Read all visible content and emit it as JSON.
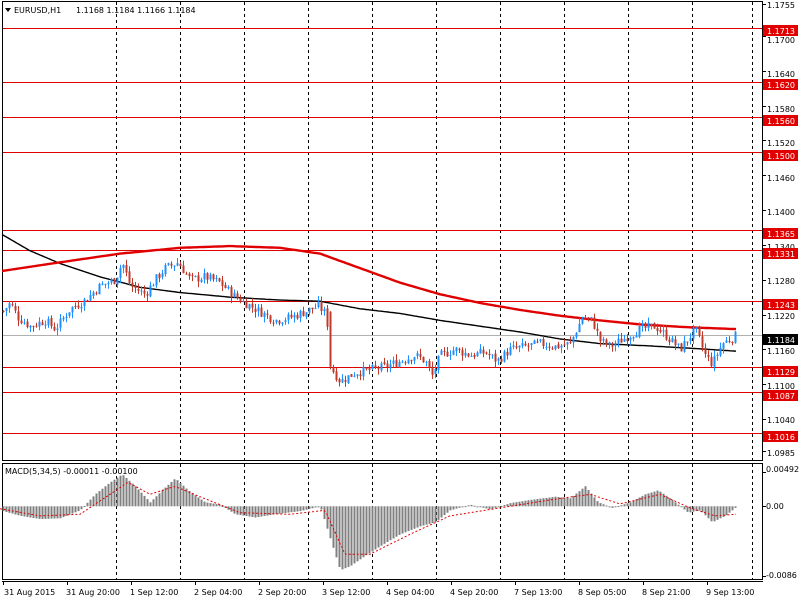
{
  "header": {
    "symbol": "EURUSD,H1",
    "ohlc": "1.1168 1.1184 1.1166 1.1184"
  },
  "macd": {
    "label": "MACD(5,34,5) -0.00011 -0.00100"
  },
  "colors": {
    "bull": "#1e90ff",
    "bear": "#c0392b",
    "level_line": "#e00000",
    "ma_slow": "#e00000",
    "ma_fast": "#000000",
    "macd_hist": "#808080",
    "macd_signal": "#e00000",
    "grid": "#000000"
  },
  "chart_data": [
    {
      "type": "candlestick",
      "symbol": "EURUSD",
      "timeframe": "H1",
      "x_ticks": [
        "31 Aug 2015",
        "31 Aug 20:00",
        "1 Sep 12:00",
        "2 Sep 04:00",
        "2 Sep 20:00",
        "3 Sep 12:00",
        "4 Sep 04:00",
        "4 Sep 20:00",
        "7 Sep 13:00",
        "8 Sep 05:00",
        "8 Sep 21:00",
        "9 Sep 13:00"
      ],
      "y_ticks": [
        "1.1755",
        "1.1700",
        "1.1640",
        "1.1580",
        "1.1520",
        "1.1460",
        "1.1400",
        "1.1340",
        "1.1280",
        "1.1220",
        "1.1160",
        "1.1100",
        "1.1040",
        "1.0985"
      ],
      "ylim": [
        1.0985,
        1.1755
      ],
      "grid": true,
      "level_lines": [
        "1.1713",
        "1.1620",
        "1.1560",
        "1.1500",
        "1.1365",
        "1.1331",
        "1.1243",
        "1.1129",
        "1.1087",
        "1.1016"
      ],
      "current_price": "1.1184",
      "anchors": [
        {
          "x": 0,
          "p": 1.122
        },
        {
          "x": 10,
          "p": 1.124
        },
        {
          "x": 18,
          "p": 1.1215
        },
        {
          "x": 30,
          "p": 1.12
        },
        {
          "x": 45,
          "p": 1.121
        },
        {
          "x": 55,
          "p": 1.1195
        },
        {
          "x": 70,
          "p": 1.123
        },
        {
          "x": 85,
          "p": 1.1245
        },
        {
          "x": 100,
          "p": 1.127
        },
        {
          "x": 115,
          "p": 1.128
        },
        {
          "x": 122,
          "p": 1.131
        },
        {
          "x": 130,
          "p": 1.127
        },
        {
          "x": 145,
          "p": 1.1255
        },
        {
          "x": 155,
          "p": 1.128
        },
        {
          "x": 165,
          "p": 1.13
        },
        {
          "x": 178,
          "p": 1.131
        },
        {
          "x": 190,
          "p": 1.128
        },
        {
          "x": 205,
          "p": 1.1285
        },
        {
          "x": 220,
          "p": 1.1275
        },
        {
          "x": 232,
          "p": 1.1255
        },
        {
          "x": 245,
          "p": 1.124
        },
        {
          "x": 260,
          "p": 1.1225
        },
        {
          "x": 275,
          "p": 1.121
        },
        {
          "x": 290,
          "p": 1.1215
        },
        {
          "x": 305,
          "p": 1.1225
        },
        {
          "x": 318,
          "p": 1.1235
        },
        {
          "x": 326,
          "p": 1.122
        },
        {
          "x": 332,
          "p": 1.1125
        },
        {
          "x": 340,
          "p": 1.1105
        },
        {
          "x": 355,
          "p": 1.112
        },
        {
          "x": 370,
          "p": 1.1125
        },
        {
          "x": 385,
          "p": 1.113
        },
        {
          "x": 400,
          "p": 1.114
        },
        {
          "x": 415,
          "p": 1.115
        },
        {
          "x": 425,
          "p": 1.114
        },
        {
          "x": 432,
          "p": 1.1115
        },
        {
          "x": 440,
          "p": 1.115
        },
        {
          "x": 455,
          "p": 1.116
        },
        {
          "x": 470,
          "p": 1.115
        },
        {
          "x": 485,
          "p": 1.1155
        },
        {
          "x": 497,
          "p": 1.114
        },
        {
          "x": 510,
          "p": 1.116
        },
        {
          "x": 525,
          "p": 1.1165
        },
        {
          "x": 540,
          "p": 1.117
        },
        {
          "x": 555,
          "p": 1.1165
        },
        {
          "x": 570,
          "p": 1.117
        },
        {
          "x": 582,
          "p": 1.1215
        },
        {
          "x": 592,
          "p": 1.121
        },
        {
          "x": 600,
          "p": 1.1175
        },
        {
          "x": 610,
          "p": 1.1165
        },
        {
          "x": 625,
          "p": 1.118
        },
        {
          "x": 640,
          "p": 1.1195
        },
        {
          "x": 655,
          "p": 1.12
        },
        {
          "x": 665,
          "p": 1.1185
        },
        {
          "x": 680,
          "p": 1.116
        },
        {
          "x": 695,
          "p": 1.1195
        },
        {
          "x": 705,
          "p": 1.115
        },
        {
          "x": 712,
          "p": 1.1135
        },
        {
          "x": 722,
          "p": 1.117
        },
        {
          "x": 736,
          "p": 1.1184
        }
      ],
      "ma_slow": [
        {
          "x": 2,
          "p": 1.1295
        },
        {
          "x": 60,
          "p": 1.131
        },
        {
          "x": 120,
          "p": 1.1325
        },
        {
          "x": 180,
          "p": 1.1335
        },
        {
          "x": 230,
          "p": 1.1338
        },
        {
          "x": 280,
          "p": 1.1335
        },
        {
          "x": 320,
          "p": 1.1325
        },
        {
          "x": 360,
          "p": 1.13
        },
        {
          "x": 400,
          "p": 1.1275
        },
        {
          "x": 440,
          "p": 1.1255
        },
        {
          "x": 480,
          "p": 1.124
        },
        {
          "x": 520,
          "p": 1.1228
        },
        {
          "x": 560,
          "p": 1.1218
        },
        {
          "x": 600,
          "p": 1.121
        },
        {
          "x": 640,
          "p": 1.1203
        },
        {
          "x": 690,
          "p": 1.1198
        },
        {
          "x": 736,
          "p": 1.1195
        }
      ],
      "ma_fast": [
        {
          "x": 2,
          "p": 1.1358
        },
        {
          "x": 30,
          "p": 1.133
        },
        {
          "x": 60,
          "p": 1.1308
        },
        {
          "x": 100,
          "p": 1.1285
        },
        {
          "x": 140,
          "p": 1.1267
        },
        {
          "x": 180,
          "p": 1.1258
        },
        {
          "x": 230,
          "p": 1.125
        },
        {
          "x": 280,
          "p": 1.1245
        },
        {
          "x": 320,
          "p": 1.1243
        },
        {
          "x": 360,
          "p": 1.123
        },
        {
          "x": 400,
          "p": 1.1222
        },
        {
          "x": 440,
          "p": 1.121
        },
        {
          "x": 480,
          "p": 1.12
        },
        {
          "x": 520,
          "p": 1.119
        },
        {
          "x": 560,
          "p": 1.1178
        },
        {
          "x": 600,
          "p": 1.117
        },
        {
          "x": 650,
          "p": 1.1166
        },
        {
          "x": 700,
          "p": 1.1161
        },
        {
          "x": 736,
          "p": 1.1157
        }
      ]
    },
    {
      "type": "histogram",
      "indicator": "MACD(5,34,5)",
      "y_ticks": [
        "0.00492",
        "0.00",
        "-0.0086"
      ],
      "ylim": [
        -0.0086,
        0.00492
      ],
      "hist_anchors": [
        {
          "x": 0,
          "v": -0.0005
        },
        {
          "x": 20,
          "v": -0.0012
        },
        {
          "x": 40,
          "v": -0.0016
        },
        {
          "x": 60,
          "v": -0.0015
        },
        {
          "x": 80,
          "v": -0.0005
        },
        {
          "x": 95,
          "v": 0.0015
        },
        {
          "x": 110,
          "v": 0.003
        },
        {
          "x": 122,
          "v": 0.004
        },
        {
          "x": 135,
          "v": 0.0025
        },
        {
          "x": 150,
          "v": 0.0005
        },
        {
          "x": 162,
          "v": 0.002
        },
        {
          "x": 175,
          "v": 0.0035
        },
        {
          "x": 188,
          "v": 0.002
        },
        {
          "x": 205,
          "v": 0.0005
        },
        {
          "x": 220,
          "v": 0.0002
        },
        {
          "x": 235,
          "v": -0.001
        },
        {
          "x": 255,
          "v": -0.0014
        },
        {
          "x": 275,
          "v": -0.001
        },
        {
          "x": 300,
          "v": -0.0006
        },
        {
          "x": 320,
          "v": 0.0
        },
        {
          "x": 330,
          "v": -0.004
        },
        {
          "x": 340,
          "v": -0.008
        },
        {
          "x": 350,
          "v": -0.0075
        },
        {
          "x": 365,
          "v": -0.0062
        },
        {
          "x": 380,
          "v": -0.005
        },
        {
          "x": 400,
          "v": -0.0035
        },
        {
          "x": 420,
          "v": -0.0025
        },
        {
          "x": 435,
          "v": -0.002
        },
        {
          "x": 450,
          "v": -0.0005
        },
        {
          "x": 470,
          "v": 0.0002
        },
        {
          "x": 490,
          "v": -0.0004
        },
        {
          "x": 510,
          "v": 0.0004
        },
        {
          "x": 530,
          "v": 0.0008
        },
        {
          "x": 555,
          "v": 0.0012
        },
        {
          "x": 570,
          "v": 0.001
        },
        {
          "x": 585,
          "v": 0.0025
        },
        {
          "x": 598,
          "v": 0.0005
        },
        {
          "x": 612,
          "v": -0.0002
        },
        {
          "x": 630,
          "v": 0.0005
        },
        {
          "x": 645,
          "v": 0.0015
        },
        {
          "x": 658,
          "v": 0.002
        },
        {
          "x": 672,
          "v": 0.0008
        },
        {
          "x": 688,
          "v": -0.0008
        },
        {
          "x": 700,
          "v": -0.0005
        },
        {
          "x": 712,
          "v": -0.002
        },
        {
          "x": 725,
          "v": -0.0012
        },
        {
          "x": 736,
          "v": -0.0001
        }
      ],
      "signal_anchors": [
        {
          "x": 0,
          "v": -0.0003
        },
        {
          "x": 40,
          "v": -0.0012
        },
        {
          "x": 80,
          "v": -0.001
        },
        {
          "x": 110,
          "v": 0.0015
        },
        {
          "x": 128,
          "v": 0.003
        },
        {
          "x": 150,
          "v": 0.0015
        },
        {
          "x": 175,
          "v": 0.0025
        },
        {
          "x": 200,
          "v": 0.0012
        },
        {
          "x": 240,
          "v": -0.0008
        },
        {
          "x": 290,
          "v": -0.001
        },
        {
          "x": 325,
          "v": -0.0005
        },
        {
          "x": 345,
          "v": -0.006
        },
        {
          "x": 370,
          "v": -0.006
        },
        {
          "x": 410,
          "v": -0.0035
        },
        {
          "x": 450,
          "v": -0.0012
        },
        {
          "x": 500,
          "v": -0.0002
        },
        {
          "x": 550,
          "v": 0.0008
        },
        {
          "x": 590,
          "v": 0.0015
        },
        {
          "x": 620,
          "v": 0.0003
        },
        {
          "x": 660,
          "v": 0.0015
        },
        {
          "x": 690,
          "v": -0.0002
        },
        {
          "x": 715,
          "v": -0.0012
        },
        {
          "x": 736,
          "v": -0.001
        }
      ]
    }
  ]
}
